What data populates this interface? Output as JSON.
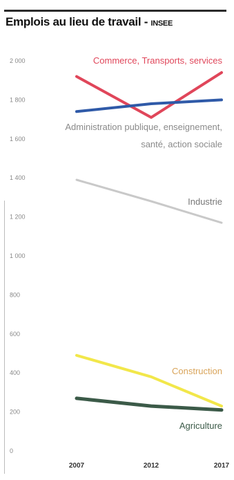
{
  "header": {
    "title": "Emplois au lieu de travail -",
    "source": "INSEE"
  },
  "chart_data": {
    "type": "line",
    "title": "Emplois au lieu de travail - INSEE",
    "x": [
      "2007",
      "2012",
      "2017"
    ],
    "ylim": [
      0,
      2000
    ],
    "yticks": [
      0,
      200,
      400,
      600,
      800,
      "1 000",
      "1 200",
      "1 400",
      "1 600",
      "1 800",
      "2 000"
    ],
    "grid": false,
    "legend": "inline-labels",
    "series": [
      {
        "name": "Commerce, Transports, services",
        "values": [
          1920,
          1710,
          1940
        ],
        "color": "#e0465a"
      },
      {
        "name": "Administration publique, enseignement, santé, action sociale",
        "values": [
          1740,
          1780,
          1800
        ],
        "color": "#2f5aa8"
      },
      {
        "name": "Industrie",
        "values": [
          1390,
          1280,
          1170
        ],
        "color": "#c9c9c9"
      },
      {
        "name": "Construction",
        "values": [
          490,
          380,
          230
        ],
        "color": "#f2e74a"
      },
      {
        "name": "Agriculture",
        "values": [
          270,
          230,
          210
        ],
        "color": "#3b5a48"
      }
    ]
  }
}
